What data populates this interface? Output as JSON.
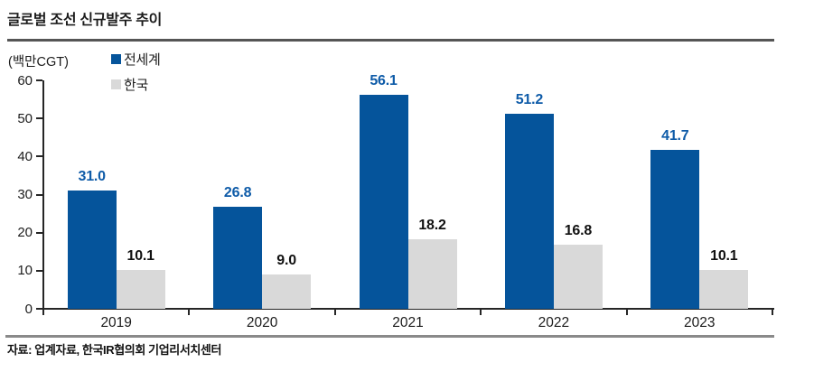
{
  "title": "글로벌 조선 신규발주 추이",
  "unit_label": "(백만CGT)",
  "source": "자료: 업계자료, 한국IR협의회 기업리서치센터",
  "legend": {
    "world": "전세계",
    "korea": "한국"
  },
  "colors": {
    "world_bar": "#05549B",
    "korea_bar": "#D9D9D9",
    "world_value_label": "#0E5BA8",
    "korea_value_label": "#111111",
    "axis": "#262626"
  },
  "chart_data": {
    "type": "bar",
    "title": "글로벌 조선 신규발주 추이",
    "ylabel": "(백만CGT)",
    "categories": [
      "2019",
      "2020",
      "2021",
      "2022",
      "2023"
    ],
    "series": [
      {
        "name": "전세계",
        "color": "#05549B",
        "label_color": "#0E5BA8",
        "values": [
          31.0,
          26.8,
          56.1,
          51.2,
          41.7
        ],
        "labels": [
          "31.0",
          "26.8",
          "56.1",
          "51.2",
          "41.7"
        ]
      },
      {
        "name": "한국",
        "color": "#D9D9D9",
        "label_color": "#111111",
        "values": [
          10.1,
          9.0,
          18.2,
          16.8,
          10.1
        ],
        "labels": [
          "10.1",
          "9.0",
          "18.2",
          "16.8",
          "10.1"
        ]
      }
    ],
    "ylim": [
      0,
      60
    ],
    "yticks": [
      0,
      10,
      20,
      30,
      40,
      50,
      60
    ],
    "legend_position": "top-left",
    "grid": false
  }
}
